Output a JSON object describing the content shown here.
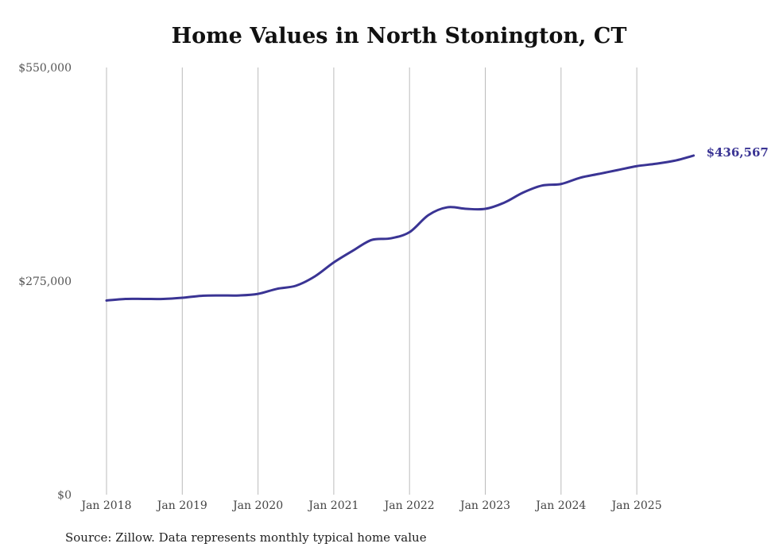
{
  "chart_data": {
    "type": "line",
    "title": "Home Values in North Stonington, CT",
    "source": "Source: Zillow. Data represents monthly typical home value",
    "xlabel": "",
    "ylabel": "",
    "ylim": [
      0,
      550000
    ],
    "yticks": [
      0,
      275000,
      550000
    ],
    "ytick_labels": [
      "$0",
      "$275,000",
      "$550,000"
    ],
    "xtick_labels": [
      "Jan 2018",
      "Jan 2019",
      "Jan 2020",
      "Jan 2021",
      "Jan 2022",
      "Jan 2023",
      "Jan 2024",
      "Jan 2025"
    ],
    "grid": "vertical",
    "line_color": "#3a3494",
    "end_label": "$436,567",
    "series": [
      {
        "name": "Typical home value",
        "points": [
          [
            "2018-01",
            250000
          ],
          [
            "2018-04",
            252000
          ],
          [
            "2018-07",
            252000
          ],
          [
            "2018-10",
            252000
          ],
          [
            "2019-01",
            253500
          ],
          [
            "2019-04",
            256000
          ],
          [
            "2019-07",
            256500
          ],
          [
            "2019-10",
            256500
          ],
          [
            "2020-01",
            258500
          ],
          [
            "2020-04",
            265000
          ],
          [
            "2020-07",
            269000
          ],
          [
            "2020-10",
            281000
          ],
          [
            "2021-01",
            299000
          ],
          [
            "2021-04",
            314000
          ],
          [
            "2021-07",
            328000
          ],
          [
            "2021-10",
            330000
          ],
          [
            "2022-01",
            338000
          ],
          [
            "2022-04",
            360000
          ],
          [
            "2022-07",
            370000
          ],
          [
            "2022-10",
            368000
          ],
          [
            "2023-01",
            368000
          ],
          [
            "2023-04",
            376000
          ],
          [
            "2023-07",
            389000
          ],
          [
            "2023-10",
            398000
          ],
          [
            "2024-01",
            400000
          ],
          [
            "2024-04",
            408000
          ],
          [
            "2024-07",
            413000
          ],
          [
            "2024-10",
            418000
          ],
          [
            "2025-01",
            423000
          ],
          [
            "2025-04",
            426000
          ],
          [
            "2025-07",
            430000
          ],
          [
            "2025-10",
            436567
          ]
        ]
      }
    ]
  }
}
